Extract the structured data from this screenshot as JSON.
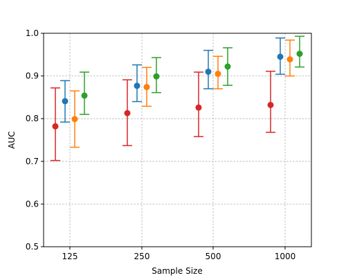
{
  "chart_data": {
    "type": "scatter",
    "title": "",
    "xlabel": "Sample Size",
    "ylabel": "AUC",
    "categories": [
      "125",
      "250",
      "500",
      "1000"
    ],
    "y_ticks": [
      "0.5",
      "0.6",
      "0.7",
      "0.8",
      "0.9",
      "1.0"
    ],
    "ylim": [
      0.5,
      1.0
    ],
    "grid": true,
    "legend": "none",
    "series": [
      {
        "color": "#d62728",
        "values": [
          0.782,
          0.813,
          0.826,
          0.832
        ],
        "lower": [
          0.702,
          0.737,
          0.758,
          0.768
        ],
        "upper": [
          0.872,
          0.891,
          0.909,
          0.911
        ]
      },
      {
        "color": "#1f77b4",
        "values": [
          0.841,
          0.877,
          0.91,
          0.945
        ],
        "lower": [
          0.792,
          0.84,
          0.87,
          0.904
        ],
        "upper": [
          0.889,
          0.926,
          0.96,
          0.989
        ]
      },
      {
        "color": "#ff7f0e",
        "values": [
          0.799,
          0.874,
          0.905,
          0.939
        ],
        "lower": [
          0.733,
          0.829,
          0.87,
          0.9
        ],
        "upper": [
          0.865,
          0.92,
          0.946,
          0.984
        ]
      },
      {
        "color": "#2ca02c",
        "values": [
          0.854,
          0.899,
          0.922,
          0.952
        ],
        "lower": [
          0.81,
          0.861,
          0.878,
          0.921
        ],
        "upper": [
          0.909,
          0.943,
          0.966,
          0.993
        ]
      }
    ]
  }
}
